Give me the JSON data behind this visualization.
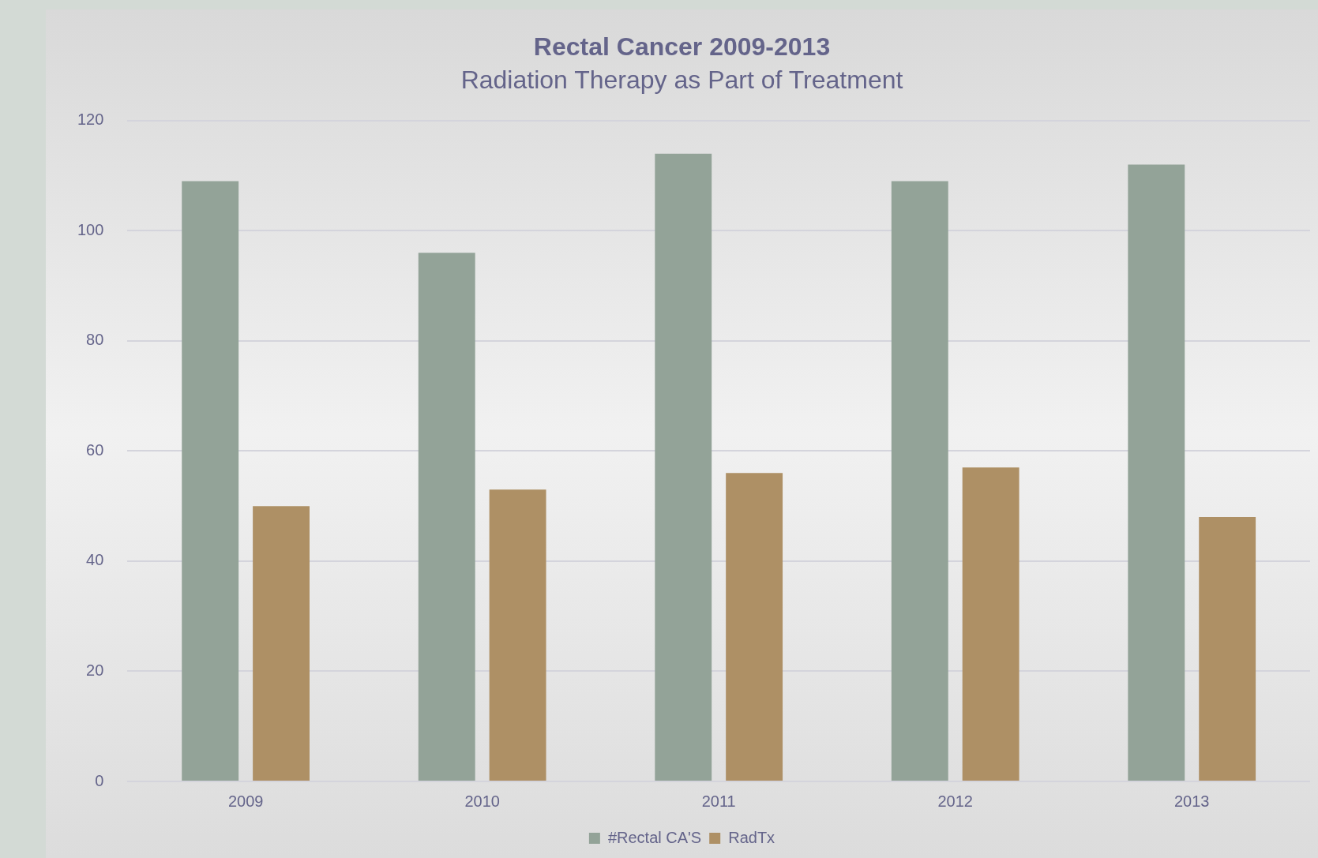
{
  "chart_data": {
    "type": "bar",
    "title": "Rectal Cancer 2009-2013",
    "subtitle": "Radiation Therapy as Part of Treatment",
    "categories": [
      "2009",
      "2010",
      "2011",
      "2012",
      "2013"
    ],
    "series": [
      {
        "name": "#Rectal CA'S",
        "color": "#93a398",
        "values": [
          109,
          96,
          114,
          109,
          112
        ]
      },
      {
        "name": "RadTx",
        "color": "#ae9065",
        "values": [
          50,
          53,
          56,
          57,
          48
        ]
      }
    ],
    "ylim": [
      0,
      120
    ],
    "yticks": [
      0,
      20,
      40,
      60,
      80,
      100,
      120
    ],
    "grid": "y",
    "legend": "bottom"
  }
}
